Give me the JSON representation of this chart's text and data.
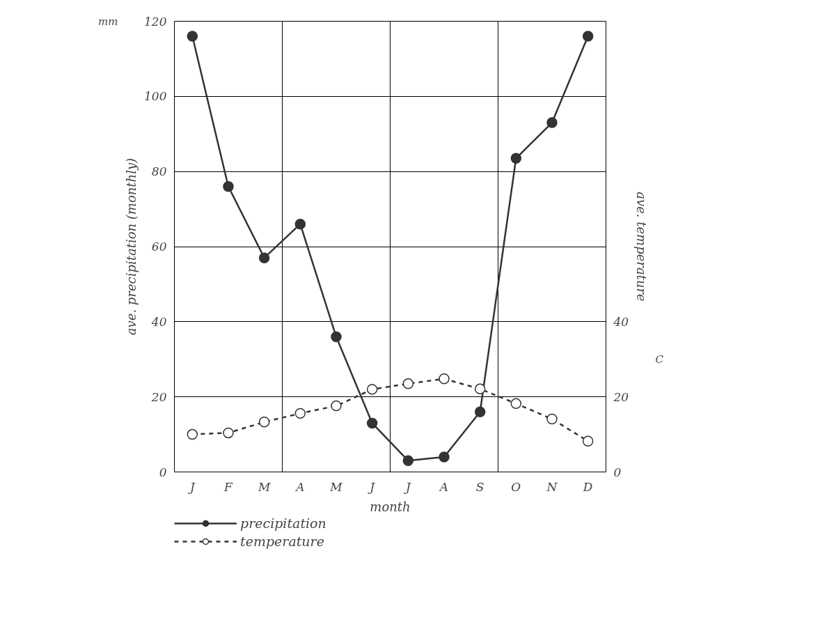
{
  "chart_data": {
    "type": "line",
    "xlabel": "month",
    "ylabel": "ave. precipitation (monthly)",
    "y2label": "ave. temperature",
    "annotations": [
      "mm",
      "C"
    ],
    "categories": [
      "J",
      "F",
      "M",
      "A",
      "M",
      "J",
      "J",
      "A",
      "S",
      "O",
      "N",
      "D"
    ],
    "series": [
      {
        "name": "precipitation",
        "color": "#333333",
        "line_style": "solid",
        "values": [
          116,
          76,
          57,
          66,
          36,
          13,
          3,
          4,
          16,
          83.5,
          93,
          116
        ]
      },
      {
        "name": "temperature",
        "color": "#333333",
        "line_style": "dashed",
        "axis": "y2",
        "values": [
          10,
          10.4,
          13.3,
          15.6,
          17.6,
          22,
          23.5,
          24.8,
          22.1,
          18.2,
          14.1,
          8.2
        ]
      }
    ],
    "ylim": [
      0,
      120
    ],
    "yticks": [
      0,
      20,
      40,
      60,
      80,
      100,
      120
    ],
    "y2lim": [
      0,
      120
    ],
    "y2ticks": [
      0,
      20,
      40
    ],
    "grid": true,
    "legend": "bottom",
    "marker": "circle"
  }
}
